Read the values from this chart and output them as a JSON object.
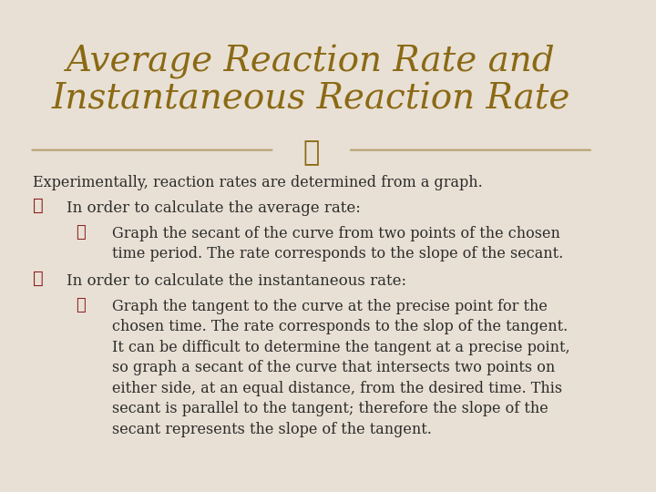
{
  "title_line1": "Average Reaction Rate and",
  "title_line2": "Instantaneous Reaction Rate",
  "title_color": "#8B6914",
  "bg_color": "#E8E0D4",
  "body_text_color": "#2C2C2C",
  "bullet_color": "#8B2020",
  "divider_color": "#B8A070",
  "body_lines": [
    {
      "indent": 0,
      "text": "Experimentally, reaction rates are determined from a graph."
    },
    {
      "indent": 1,
      "text": "In order to calculate the average rate:"
    },
    {
      "indent": 2,
      "text": "Graph the secant of the curve from two points of the chosen\ntime period. The rate corresponds to the slope of the secant."
    },
    {
      "indent": 1,
      "text": "In order to calculate the instantaneous rate:"
    },
    {
      "indent": 2,
      "text": "Graph the tangent to the curve at the precise point for the\nchosen time. The rate corresponds to the slop of the tangent.\nIt can be difficult to determine the tangent at a precise point,\nso graph a secant of the curve that intersects two points on\neither side, at an equal distance, from the desired time. This\nsecant is parallel to the tangent; therefore the slope of the\nsecant represents the slope of the tangent."
    }
  ],
  "title_fontsize": 28,
  "body_fontsize": 11.5,
  "bullet1_fontsize": 14,
  "bullet2_fontsize": 13
}
